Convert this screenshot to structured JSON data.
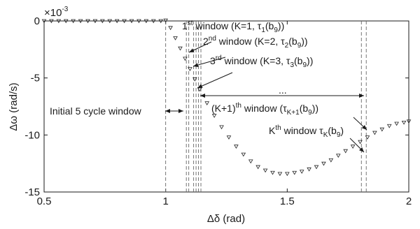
{
  "chart_data": {
    "type": "scatter",
    "xlabel": "Δδ (rad)",
    "ylabel": "Δω (rad/s)",
    "y_scale_label": "×10",
    "y_scale_exponent": "-3",
    "xlim": [
      0.5,
      2.0
    ],
    "ylim": [
      -15,
      0
    ],
    "xticks": [
      {
        "value": 0.5,
        "label": "0.5"
      },
      {
        "value": 1.0,
        "label": "1"
      },
      {
        "value": 1.5,
        "label": "1.5"
      },
      {
        "value": 2.0,
        "label": "2"
      }
    ],
    "yticks": [
      {
        "value": 0,
        "label": "0"
      },
      {
        "value": -5,
        "label": "-5"
      },
      {
        "value": -10,
        "label": "-10"
      },
      {
        "value": -15,
        "label": "-15"
      }
    ],
    "grid": false,
    "marker": "triangle-down",
    "series": [
      {
        "x": [
          0.5,
          0.53,
          0.56,
          0.59,
          0.62,
          0.65,
          0.68,
          0.71,
          0.74,
          0.77,
          0.8,
          0.83,
          0.86,
          0.89,
          0.92,
          0.95,
          0.98,
          1.0,
          1.02,
          1.04,
          1.06,
          1.08,
          1.1,
          1.12,
          1.14,
          1.17,
          1.2,
          1.23,
          1.26,
          1.29,
          1.32,
          1.35,
          1.38,
          1.41,
          1.44,
          1.47,
          1.5,
          1.53,
          1.56,
          1.59,
          1.62,
          1.65,
          1.68,
          1.71,
          1.74,
          1.77,
          1.8,
          1.83,
          1.86,
          1.89,
          1.92,
          1.95,
          1.98,
          2.0
        ],
        "y": [
          0,
          0,
          0,
          0,
          0,
          0,
          0,
          0,
          0,
          0,
          0,
          0,
          0,
          0,
          0,
          0,
          0,
          0.05,
          -0.6,
          -1.5,
          -2.4,
          -3.3,
          -4.2,
          -5.1,
          -6.0,
          -7.2,
          -8.3,
          -9.3,
          -10.2,
          -11.0,
          -11.7,
          -12.3,
          -12.8,
          -13.1,
          -13.3,
          -13.4,
          -13.4,
          -13.3,
          -13.2,
          -13.0,
          -12.8,
          -12.5,
          -12.2,
          -11.8,
          -11.4,
          -11.0,
          -10.6,
          -10.2,
          -9.8,
          -9.5,
          -9.2,
          -9.0,
          -8.9,
          -8.8
        ]
      }
    ],
    "window_lines_x": [
      1.0,
      1.085,
      1.095,
      1.115,
      1.125,
      1.135,
      1.145,
      1.805,
      1.825
    ],
    "annotations": {
      "w1_base": "1",
      "w1_sup": "st",
      "w1_mid": " window (K=1, ",
      "w1_tau": "τ",
      "w1_tau_sub": "1",
      "w1_b": "(b",
      "w1_b_sub": "9",
      "w1_end": "))",
      "w2_base": "2",
      "w2_sup": "nd",
      "w2_mid": " window (K=2, ",
      "w2_tau": "τ",
      "w2_tau_sub": "2",
      "w2_b": "(b",
      "w2_b_sub": "9",
      "w2_end": "))",
      "w3_base": "3",
      "w3_sup": "rd",
      "w3_mid": " window (K=3, ",
      "w3_tau": "τ",
      "w3_tau_sub": "3",
      "w3_b": "(b",
      "w3_b_sub": "9",
      "w3_end": "))",
      "dots": "...",
      "wk1_base": "(K+1)",
      "wk1_sup": "th",
      "wk1_mid": " window (",
      "wk1_tau": "τ",
      "wk1_tau_sub": "K+1",
      "wk1_b": "(b",
      "wk1_b_sub": "9",
      "wk1_end": "))",
      "wk_base": "K",
      "wk_sup": "th",
      "wk_mid": " window ",
      "wk_tau": "τ",
      "wk_tau_sub": "K",
      "wk_b": "(b",
      "wk_b_sub": "9",
      "wk_end": ")",
      "initial": "Initial 5 cycle window"
    }
  }
}
